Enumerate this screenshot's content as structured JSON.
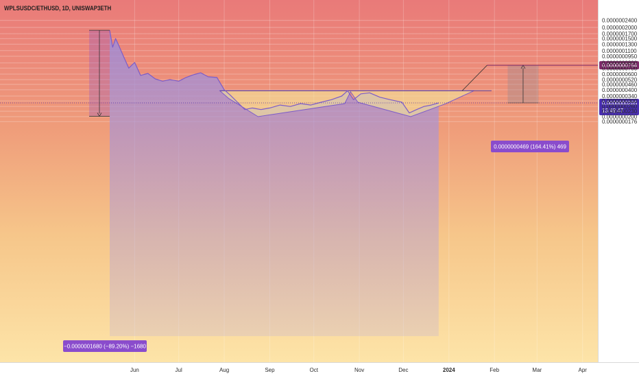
{
  "header": {
    "symbol": "WPLSUSDC/ETHUSD, 1D, UNISWAP3ETH"
  },
  "colors": {
    "line": "#7b5cc9",
    "fill": "#a591d8",
    "pattern_fill": "#f3e39a",
    "measure": "#8a4ccc",
    "target": "#7e2a6a",
    "current": "#4a2fb2"
  },
  "annotations": {
    "drop_label": "−0.0000001680 (−89.20%) −1680",
    "rise_label": "0.0000000469 (164.41%) 469",
    "target_price": "0.0000000754",
    "current_price": "0.0000000285",
    "countdown": "13:49:47"
  },
  "chart_data": {
    "type": "line",
    "title": "WPLSUSDC/ETHUSD, 1D, UNISWAP3ETH",
    "xlabel": "",
    "ylabel": "",
    "x_ticks": [
      "Jun",
      "Jul",
      "Aug",
      "Sep",
      "Oct",
      "Nov",
      "Dec",
      "2024",
      "Feb",
      "Mar",
      "Apr"
    ],
    "y_ticks": [
      "0.0000002400",
      "0.0000002000",
      "0.0000001700",
      "0.0000001500",
      "0.0000001300",
      "0.0000001100",
      "0.0000000950",
      "0.0000000800",
      "0.0000000700",
      "0.0000000600",
      "0.0000000520",
      "0.0000000460",
      "0.0000000400",
      "0.0000000340",
      "0.0000000300",
      "0.0000000260",
      "0.0000000230",
      "0.0000000200",
      "0.0000000176"
    ],
    "y_scale": "log",
    "series": [
      {
        "values": [
          [
            "2023-05-15",
            1.86e-07
          ],
          [
            "2023-05-17",
            1.2e-07
          ],
          [
            "2023-05-19",
            1.5e-07
          ],
          [
            "2023-05-21",
            1.28e-07
          ],
          [
            "2023-05-24",
            9.8e-08
          ],
          [
            "2023-05-28",
            7e-08
          ],
          [
            "2023-06-01",
            8.1e-08
          ],
          [
            "2023-06-05",
            5.8e-08
          ],
          [
            "2023-06-10",
            6.1e-08
          ],
          [
            "2023-06-15",
            5.3e-08
          ],
          [
            "2023-06-20",
            5e-08
          ],
          [
            "2023-06-25",
            5.2e-08
          ],
          [
            "2023-07-01",
            5e-08
          ],
          [
            "2023-07-06",
            5.5e-08
          ],
          [
            "2023-07-11",
            5.9e-08
          ],
          [
            "2023-07-16",
            6.2e-08
          ],
          [
            "2023-07-21",
            5.6e-08
          ],
          [
            "2023-07-27",
            5.5e-08
          ],
          [
            "2023-08-01",
            4e-08
          ],
          [
            "2023-08-05",
            3.5e-08
          ],
          [
            "2023-08-10",
            2.9e-08
          ],
          [
            "2023-08-15",
            2.4e-08
          ],
          [
            "2023-08-20",
            2.5e-08
          ],
          [
            "2023-08-26",
            2.4e-08
          ],
          [
            "2023-09-01",
            2.5e-08
          ],
          [
            "2023-09-08",
            2.7e-08
          ],
          [
            "2023-09-15",
            2.6e-08
          ],
          [
            "2023-09-22",
            2.8e-08
          ],
          [
            "2023-09-29",
            2.7e-08
          ],
          [
            "2023-10-06",
            2.9e-08
          ],
          [
            "2023-10-13",
            3.1e-08
          ],
          [
            "2023-10-20",
            3.4e-08
          ],
          [
            "2023-10-24",
            3.9e-08
          ],
          [
            "2023-10-28",
            3.1e-08
          ],
          [
            "2023-11-02",
            3.6e-08
          ],
          [
            "2023-11-08",
            3.7e-08
          ],
          [
            "2023-11-15",
            3.3e-08
          ],
          [
            "2023-11-22",
            3.1e-08
          ],
          [
            "2023-11-30",
            2.9e-08
          ],
          [
            "2023-12-05",
            2.2e-08
          ],
          [
            "2023-12-10",
            2.4e-08
          ],
          [
            "2023-12-15",
            2.6e-08
          ],
          [
            "2023-12-20",
            2.7e-08
          ],
          [
            "2023-12-25",
            2.85e-08
          ]
        ]
      }
    ],
    "levels": [
      3.9e-08,
      2.7e-08
    ]
  }
}
